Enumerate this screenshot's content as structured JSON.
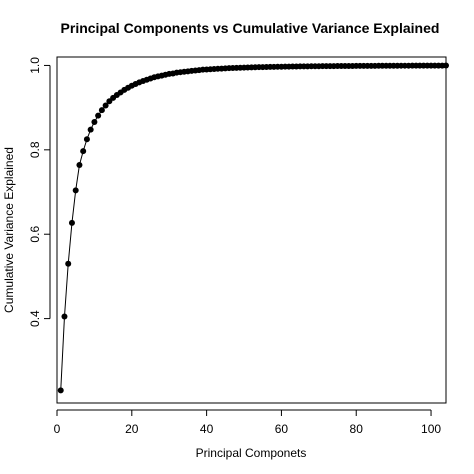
{
  "chart_data": {
    "type": "scatter",
    "title": "Principal Components vs Cumulative Variance Explained",
    "xlabel": "Principal Componets",
    "ylabel": "Cumulative Variance Explained",
    "xlim": [
      0,
      104
    ],
    "ylim": [
      0.2,
      1.02
    ],
    "x_ticks": [
      0,
      20,
      40,
      60,
      80,
      100
    ],
    "x_tick_labels": [
      "0",
      "20",
      "40",
      "60",
      "80",
      "100"
    ],
    "y_ticks": [
      0.4,
      0.6,
      0.8,
      1.0
    ],
    "y_tick_labels": [
      "0.4",
      "0.6",
      "0.8",
      "1.0"
    ],
    "grid": false,
    "series": [
      {
        "line_color": "#000000",
        "marker_color": "#000000",
        "x": [
          1,
          2,
          3,
          4,
          5,
          6,
          7,
          8,
          9,
          10,
          11,
          12,
          13,
          14,
          15,
          16,
          17,
          18,
          19,
          20,
          21,
          22,
          23,
          24,
          25,
          26,
          27,
          28,
          29,
          30,
          31,
          32,
          33,
          34,
          35,
          36,
          37,
          38,
          39,
          40,
          41,
          42,
          43,
          44,
          45,
          46,
          47,
          48,
          49,
          50,
          51,
          52,
          53,
          54,
          55,
          56,
          57,
          58,
          59,
          60,
          61,
          62,
          63,
          64,
          65,
          66,
          67,
          68,
          69,
          70,
          71,
          72,
          73,
          74,
          75,
          76,
          77,
          78,
          79,
          80,
          81,
          82,
          83,
          84,
          85,
          86,
          87,
          88,
          89,
          90,
          91,
          92,
          93,
          94,
          95,
          96,
          97,
          98,
          99,
          100,
          101,
          102,
          103,
          104
        ],
        "y": [
          0.23,
          0.405,
          0.53,
          0.627,
          0.704,
          0.764,
          0.797,
          0.825,
          0.848,
          0.866,
          0.881,
          0.894,
          0.905,
          0.915,
          0.923,
          0.93,
          0.936,
          0.942,
          0.947,
          0.952,
          0.956,
          0.96,
          0.963,
          0.966,
          0.969,
          0.972,
          0.974,
          0.976,
          0.978,
          0.98,
          0.981,
          0.983,
          0.984,
          0.985,
          0.986,
          0.987,
          0.988,
          0.989,
          0.99,
          0.9905,
          0.991,
          0.9915,
          0.992,
          0.9925,
          0.993,
          0.9935,
          0.994,
          0.9943,
          0.9946,
          0.9949,
          0.9952,
          0.9955,
          0.9957,
          0.9959,
          0.9961,
          0.9963,
          0.9965,
          0.9967,
          0.9969,
          0.997,
          0.9972,
          0.9973,
          0.9975,
          0.9976,
          0.9977,
          0.9978,
          0.9979,
          0.998,
          0.9981,
          0.9982,
          0.9983,
          0.9984,
          0.9985,
          0.9985,
          0.9986,
          0.9987,
          0.9987,
          0.9988,
          0.9988,
          0.9989,
          0.9989,
          0.999,
          0.999,
          0.9991,
          0.9991,
          0.9992,
          0.9992,
          0.9992,
          0.9993,
          0.9993,
          0.9993,
          0.9994,
          0.9994,
          0.9994,
          0.9995,
          0.9995,
          0.9995,
          0.9996,
          0.9996,
          0.9996,
          0.9997,
          0.9997,
          0.9997,
          0.9998
        ]
      }
    ]
  }
}
